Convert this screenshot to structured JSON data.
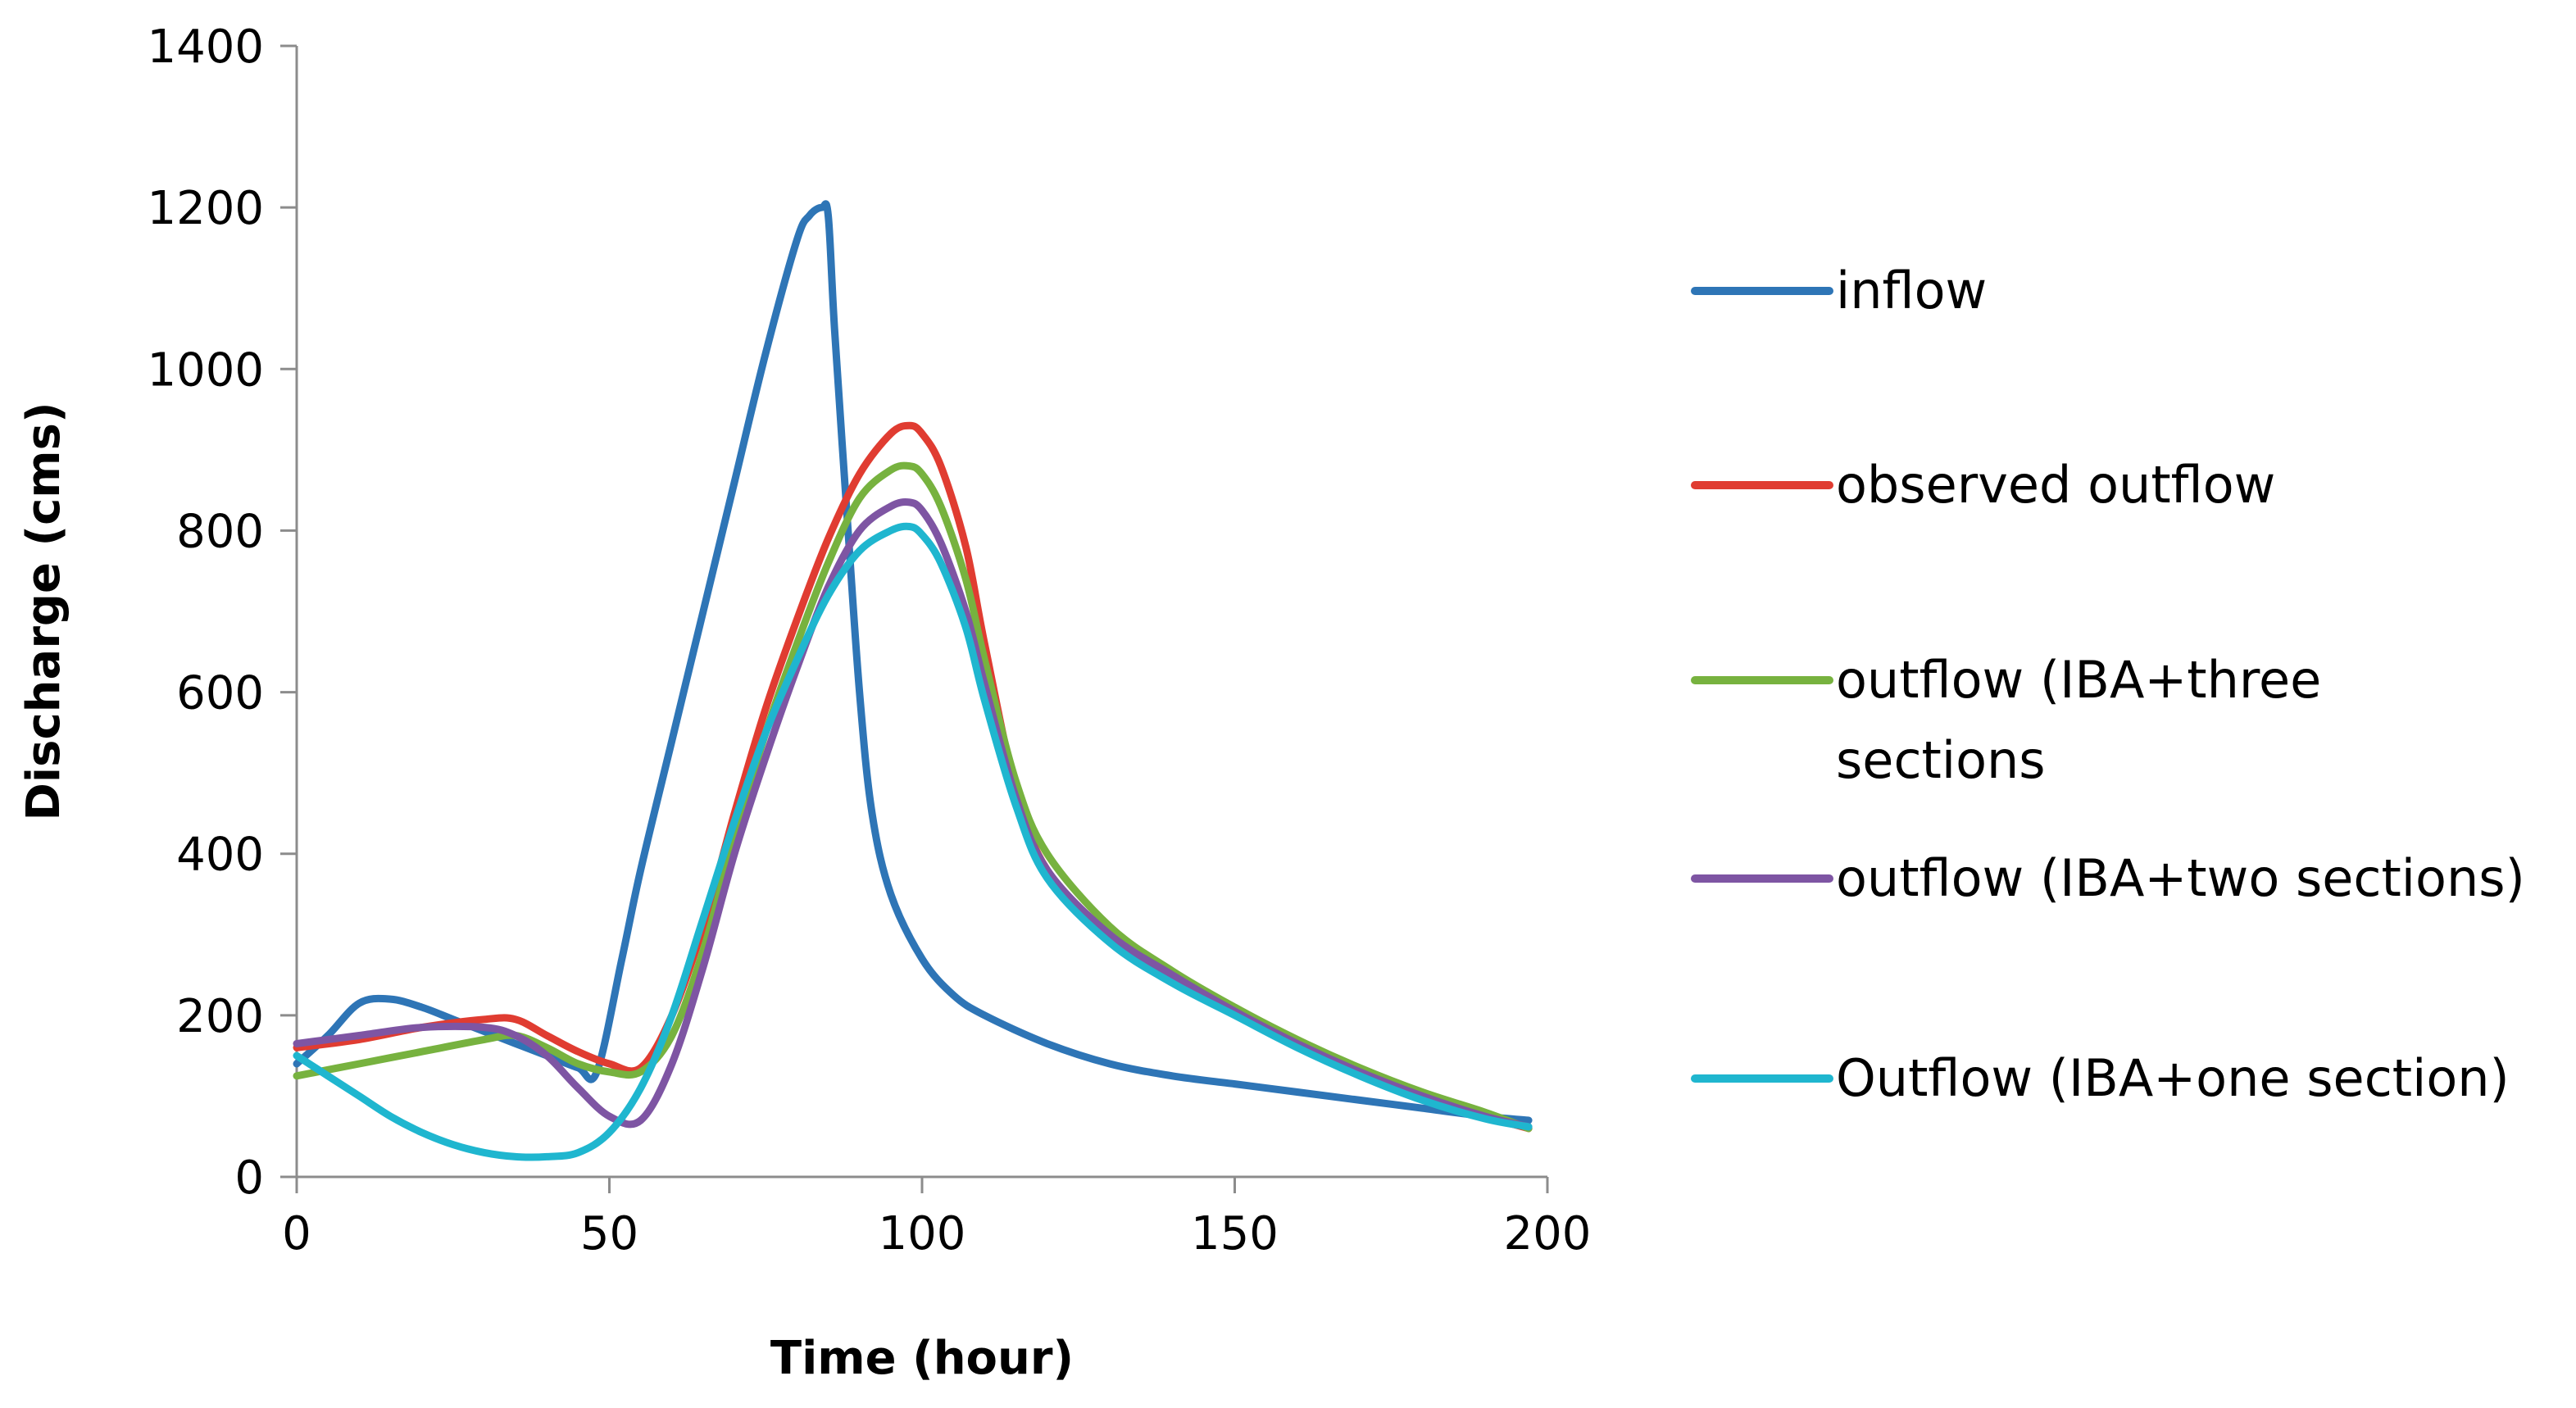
{
  "chart_data": {
    "type": "line",
    "title": "",
    "xlabel": "Time (hour)",
    "ylabel": "Discharge (cms)",
    "xlim": [
      0,
      200
    ],
    "ylim": [
      0,
      1400
    ],
    "xticks": [
      0,
      50,
      100,
      150,
      200
    ],
    "yticks": [
      0,
      200,
      400,
      600,
      800,
      1000,
      1200,
      1400
    ],
    "grid": false,
    "legend_position": "right",
    "series": [
      {
        "name": "inflow",
        "color": "#2e75b6",
        "x": [
          0,
          5,
          10,
          15,
          20,
          25,
          30,
          35,
          40,
          45,
          48,
          52,
          55,
          60,
          65,
          70,
          75,
          80,
          82,
          84,
          85,
          86,
          88,
          90,
          92,
          95,
          100,
          105,
          110,
          120,
          130,
          140,
          150,
          160,
          170,
          180,
          190,
          197
        ],
        "y": [
          140,
          175,
          215,
          220,
          210,
          195,
          180,
          165,
          150,
          135,
          130,
          270,
          380,
          540,
          700,
          860,
          1020,
          1160,
          1190,
          1200,
          1190,
          1050,
          820,
          600,
          450,
          350,
          270,
          225,
          200,
          165,
          140,
          125,
          115,
          105,
          95,
          85,
          75,
          70
        ]
      },
      {
        "name": "observed outflow",
        "color": "#e03c31",
        "x": [
          0,
          10,
          20,
          30,
          35,
          40,
          45,
          50,
          55,
          60,
          65,
          70,
          75,
          80,
          85,
          90,
          95,
          98,
          100,
          103,
          107,
          110,
          115,
          120,
          130,
          140,
          150,
          160,
          170,
          180,
          190,
          197
        ],
        "y": [
          160,
          170,
          185,
          195,
          195,
          175,
          155,
          140,
          135,
          200,
          310,
          450,
          580,
          690,
          790,
          870,
          920,
          930,
          920,
          880,
          780,
          660,
          480,
          380,
          300,
          250,
          205,
          165,
          130,
          100,
          75,
          60
        ]
      },
      {
        "name": "outflow (IBA+three sections",
        "color": "#77b23f",
        "x": [
          0,
          10,
          20,
          30,
          35,
          40,
          45,
          50,
          55,
          60,
          65,
          70,
          75,
          80,
          85,
          90,
          95,
          98,
          100,
          103,
          107,
          110,
          115,
          120,
          130,
          140,
          150,
          160,
          170,
          180,
          190,
          197
        ],
        "y": [
          125,
          140,
          155,
          170,
          175,
          160,
          140,
          130,
          130,
          175,
          280,
          420,
          550,
          660,
          760,
          840,
          875,
          880,
          870,
          830,
          740,
          640,
          490,
          400,
          310,
          255,
          210,
          170,
          135,
          105,
          80,
          60
        ]
      },
      {
        "name": "outflow (IBA+two sections)",
        "color": "#7e55a3",
        "x": [
          0,
          10,
          20,
          30,
          35,
          40,
          45,
          50,
          55,
          60,
          65,
          70,
          75,
          80,
          85,
          90,
          95,
          98,
          100,
          103,
          107,
          110,
          115,
          120,
          130,
          140,
          150,
          160,
          170,
          180,
          190,
          197
        ],
        "y": [
          165,
          175,
          185,
          185,
          175,
          150,
          110,
          75,
          70,
          140,
          260,
          400,
          520,
          630,
          730,
          800,
          830,
          835,
          825,
          785,
          700,
          610,
          470,
          380,
          300,
          250,
          205,
          165,
          130,
          100,
          75,
          62
        ]
      },
      {
        "name": "Outflow (IBA+one section)",
        "color": "#1fb6cf",
        "x": [
          0,
          5,
          10,
          15,
          20,
          25,
          30,
          35,
          40,
          45,
          50,
          55,
          60,
          65,
          70,
          75,
          80,
          85,
          90,
          95,
          98,
          100,
          103,
          107,
          110,
          115,
          120,
          130,
          140,
          150,
          160,
          170,
          180,
          190,
          197
        ],
        "y": [
          150,
          125,
          100,
          75,
          55,
          40,
          30,
          25,
          25,
          30,
          55,
          110,
          200,
          320,
          440,
          550,
          640,
          720,
          775,
          800,
          805,
          795,
          760,
          680,
          590,
          460,
          370,
          290,
          240,
          200,
          160,
          125,
          95,
          72,
          62
        ]
      }
    ]
  }
}
